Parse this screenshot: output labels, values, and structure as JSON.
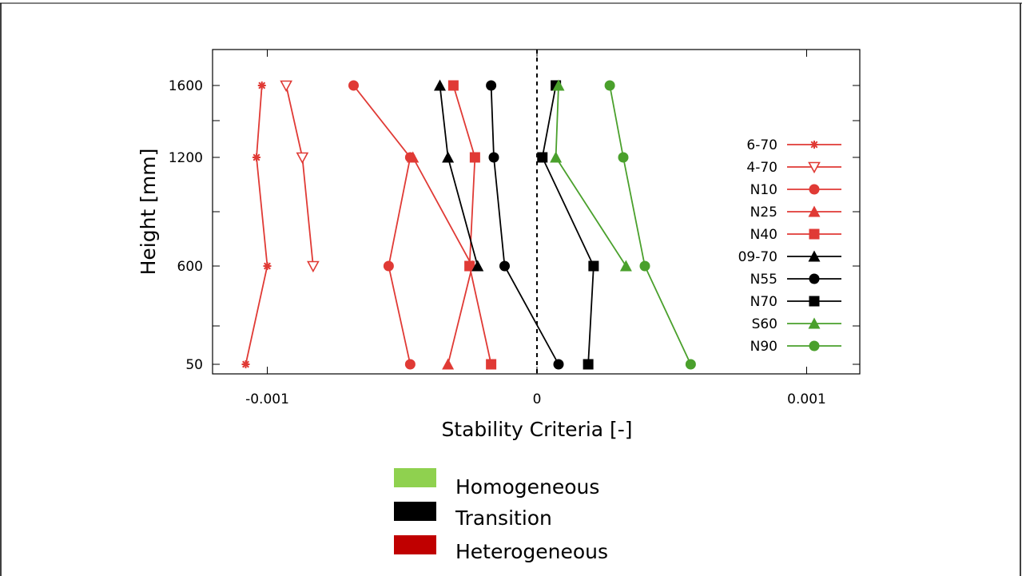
{
  "chart_data": {
    "type": "line",
    "title": "",
    "xlabel": "Stability Criteria [-]",
    "ylabel": "Height [mm]",
    "xlim": [
      -0.0012,
      0.0012
    ],
    "ylim": [
      0,
      1800
    ],
    "x_ticks": [
      {
        "value": -0.001,
        "label": "-0.001"
      },
      {
        "value": 0,
        "label": "0"
      },
      {
        "value": 0.001,
        "label": "0.001"
      }
    ],
    "y_ticks": [
      {
        "value": 50,
        "label": "50"
      },
      {
        "value": 600,
        "label": "600"
      },
      {
        "value": 1200,
        "label": "1200"
      },
      {
        "value": 1600,
        "label": "1600"
      }
    ],
    "y_minor_ticks": [
      400,
      800,
      1000,
      1400
    ],
    "zero_line": {
      "x": 0,
      "style": "dashed"
    },
    "grid": false,
    "legend_position": "right",
    "heights": [
      50,
      600,
      1200,
      1600
    ],
    "series": [
      {
        "name": "6-70",
        "color": "#e03a35",
        "marker": "star",
        "x": [
          -0.00108,
          -0.001,
          -0.00104,
          -0.00102
        ]
      },
      {
        "name": "4-70",
        "color": "#e03a35",
        "marker": "triangle-down-open",
        "x": [
          null,
          -0.00083,
          -0.00087,
          -0.00093
        ]
      },
      {
        "name": "N10",
        "color": "#e03a35",
        "marker": "circle",
        "x": [
          -0.00047,
          -0.00055,
          -0.00047,
          -0.00068
        ]
      },
      {
        "name": "N25",
        "color": "#e03a35",
        "marker": "triangle",
        "x": [
          -0.00033,
          -0.00024,
          -0.00046,
          null
        ]
      },
      {
        "name": "N40",
        "color": "#e03a35",
        "marker": "square",
        "x": [
          -0.00017,
          -0.00025,
          -0.00023,
          -0.00031
        ]
      },
      {
        "name": "09-70",
        "color": "#000000",
        "marker": "triangle",
        "x": [
          null,
          -0.00022,
          -0.00033,
          -0.00036
        ]
      },
      {
        "name": "N55",
        "color": "#000000",
        "marker": "circle",
        "x": [
          8e-05,
          -0.00012,
          -0.00016,
          -0.00017
        ]
      },
      {
        "name": "N70",
        "color": "#000000",
        "marker": "square",
        "x": [
          0.00019,
          0.00021,
          2e-05,
          7e-05
        ]
      },
      {
        "name": "S60",
        "color": "#4aa02c",
        "marker": "triangle",
        "x": [
          null,
          0.00033,
          7e-05,
          8e-05
        ]
      },
      {
        "name": "N90",
        "color": "#4aa02c",
        "marker": "circle",
        "x": [
          0.00057,
          0.0004,
          0.00032,
          0.00027
        ]
      }
    ]
  },
  "category_legend": [
    {
      "label": "Homogeneous",
      "color": "#8fd14f"
    },
    {
      "label": "Transition",
      "color": "#000000"
    },
    {
      "label": "Heterogeneous",
      "color": "#c00000"
    }
  ]
}
